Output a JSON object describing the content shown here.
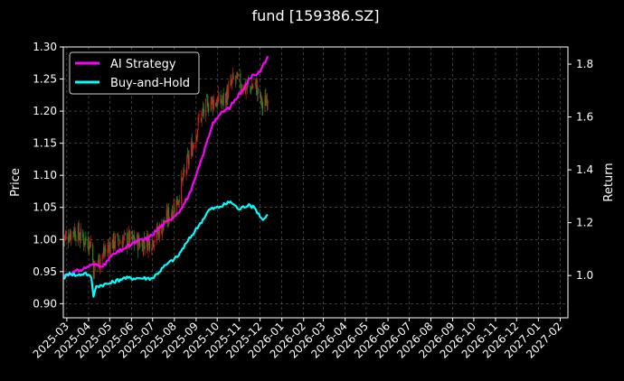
{
  "chart_data": {
    "type": "line",
    "title": "fund [159386.SZ]",
    "xlabel": "",
    "ylabel": "Price",
    "y2label": "Return",
    "background": "#000000",
    "grid": true,
    "legend_position": "top-left",
    "x_ticks": [
      "2025-03",
      "2025-04",
      "2025-05",
      "2025-06",
      "2025-07",
      "2025-08",
      "2025-09",
      "2025-10",
      "2025-11",
      "2025-12",
      "2026-01",
      "2026-02",
      "2026-03",
      "2026-04",
      "2026-05",
      "2026-06",
      "2026-07",
      "2026-08",
      "2026-09",
      "2026-10",
      "2026-11",
      "2026-12",
      "2027-01",
      "2027-02"
    ],
    "xlim": [
      "2025-02-24",
      "2027-02-12"
    ],
    "ylim": [
      0.878,
      1.3
    ],
    "y_ticks": [
      0.9,
      0.95,
      1.0,
      1.05,
      1.1,
      1.15,
      1.2,
      1.25,
      1.3
    ],
    "y_tick_labels": [
      "0.90",
      "0.95",
      "1.00",
      "1.05",
      "1.10",
      "1.15",
      "1.20",
      "1.25",
      "1.30"
    ],
    "y2lim": [
      0.84,
      1.865
    ],
    "y2_ticks": [
      1.0,
      1.2,
      1.4,
      1.6,
      1.8
    ],
    "y2_tick_labels": [
      "1.0",
      "1.2",
      "1.4",
      "1.6",
      "1.8"
    ],
    "candles": {
      "up_color": "#d11a1a",
      "down_color": "#1f8a1f",
      "anchors": [
        [
          "2025-02-24",
          1.0
        ],
        [
          "2025-03-10",
          1.015
        ],
        [
          "2025-03-25",
          1.0
        ],
        [
          "2025-04-05",
          0.995
        ],
        [
          "2025-04-08",
          0.955
        ],
        [
          "2025-04-20",
          0.975
        ],
        [
          "2025-05-05",
          0.995
        ],
        [
          "2025-05-25",
          1.0
        ],
        [
          "2025-06-15",
          0.995
        ],
        [
          "2025-07-01",
          1.0
        ],
        [
          "2025-07-20",
          1.03
        ],
        [
          "2025-08-05",
          1.06
        ],
        [
          "2025-08-20",
          1.12
        ],
        [
          "2025-09-05",
          1.185
        ],
        [
          "2025-09-20",
          1.215
        ],
        [
          "2025-10-10",
          1.215
        ],
        [
          "2025-10-25",
          1.25
        ],
        [
          "2025-11-10",
          1.235
        ],
        [
          "2025-11-25",
          1.24
        ],
        [
          "2025-12-05",
          1.205
        ],
        [
          "2025-12-12",
          1.225
        ]
      ]
    },
    "series": [
      {
        "name": "AI Strategy",
        "color": "#ff00ff",
        "axis": "right",
        "points": [
          [
            "2025-02-24",
            1.0
          ],
          [
            "2025-03-20",
            1.02
          ],
          [
            "2025-04-05",
            1.04
          ],
          [
            "2025-04-25",
            1.04
          ],
          [
            "2025-05-01",
            1.07
          ],
          [
            "2025-05-20",
            1.1
          ],
          [
            "2025-06-10",
            1.13
          ],
          [
            "2025-06-25",
            1.14
          ],
          [
            "2025-07-10",
            1.18
          ],
          [
            "2025-07-25",
            1.21
          ],
          [
            "2025-08-10",
            1.25
          ],
          [
            "2025-08-25",
            1.32
          ],
          [
            "2025-09-10",
            1.45
          ],
          [
            "2025-09-25",
            1.58
          ],
          [
            "2025-10-05",
            1.61
          ],
          [
            "2025-10-20",
            1.64
          ],
          [
            "2025-11-05",
            1.7
          ],
          [
            "2025-11-20",
            1.76
          ],
          [
            "2025-12-01",
            1.77
          ],
          [
            "2025-12-12",
            1.83
          ]
        ]
      },
      {
        "name": "Buy-and-Hold",
        "color": "#00ffff",
        "axis": "right",
        "points": [
          [
            "2025-02-24",
            0.99
          ],
          [
            "2025-03-05",
            1.01
          ],
          [
            "2025-03-15",
            1.0
          ],
          [
            "2025-03-28",
            1.01
          ],
          [
            "2025-04-05",
            0.99
          ],
          [
            "2025-04-08",
            0.92
          ],
          [
            "2025-04-12",
            0.96
          ],
          [
            "2025-05-01",
            0.97
          ],
          [
            "2025-05-20",
            0.99
          ],
          [
            "2025-06-10",
            0.99
          ],
          [
            "2025-07-01",
            0.99
          ],
          [
            "2025-07-20",
            1.04
          ],
          [
            "2025-08-05",
            1.07
          ],
          [
            "2025-08-20",
            1.13
          ],
          [
            "2025-09-05",
            1.19
          ],
          [
            "2025-09-20",
            1.25
          ],
          [
            "2025-10-05",
            1.26
          ],
          [
            "2025-10-20",
            1.28
          ],
          [
            "2025-11-01",
            1.25
          ],
          [
            "2025-11-15",
            1.27
          ],
          [
            "2025-11-25",
            1.25
          ],
          [
            "2025-12-05",
            1.21
          ],
          [
            "2025-12-12",
            1.23
          ]
        ]
      }
    ]
  }
}
